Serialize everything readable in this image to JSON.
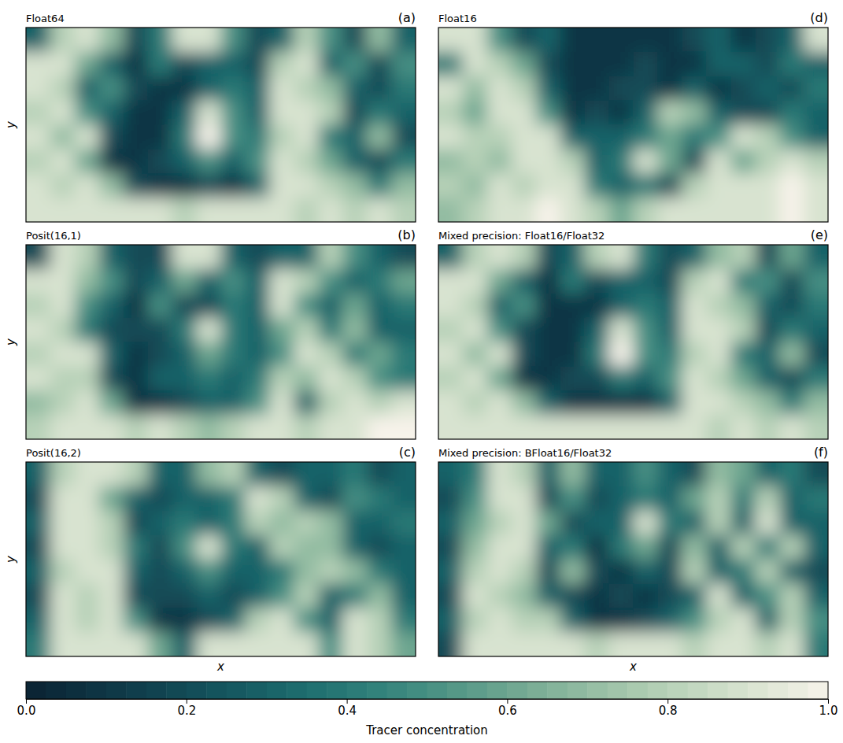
{
  "chart_data": {
    "type": "heatmap",
    "tick_labels": false,
    "x_label": "x",
    "y_label": "y",
    "colorbar": {
      "label": "Tracer concentration",
      "range": [
        0,
        1
      ],
      "ticks": [
        {
          "value": 0,
          "label": "0.0"
        },
        {
          "value": 0.2,
          "label": "0.2"
        },
        {
          "value": 0.4,
          "label": "0.4"
        },
        {
          "value": 0.6,
          "label": "0.6"
        },
        {
          "value": 0.8,
          "label": "0.8"
        },
        {
          "value": 1,
          "label": "1.0"
        }
      ]
    },
    "panels": [
      {
        "title": "Float64",
        "letter": "(a)",
        "cells": [
          [
            0.3,
            0.8,
            0.9,
            0.7,
            0.2,
            0.4,
            0.9,
            0.9,
            0.5,
            0.2,
            0.3,
            0.8,
            0.5,
            0.2,
            0.7,
            0.3
          ],
          [
            0.9,
            0.9,
            0.6,
            0.3,
            0.1,
            0.4,
            0.2,
            0.3,
            0.3,
            0.2,
            0.8,
            0.9,
            0.3,
            0.5,
            0.2,
            0.5
          ],
          [
            0.9,
            0.8,
            0.3,
            0.5,
            0.2,
            0.1,
            0.1,
            0.3,
            0.4,
            0.3,
            0.9,
            0.8,
            0.7,
            0.3,
            0.2,
            0.4
          ],
          [
            0.8,
            0.9,
            0.5,
            0.3,
            0.1,
            0.1,
            0.3,
            0.9,
            0.5,
            0.3,
            0.9,
            0.9,
            0.8,
            0.2,
            0.4,
            0.3
          ],
          [
            0.9,
            0.7,
            0.9,
            0.2,
            0.1,
            0.1,
            0.4,
            1.0,
            0.5,
            0.4,
            0.8,
            0.9,
            0.4,
            0.3,
            0.7,
            0.2
          ],
          [
            0.8,
            0.9,
            0.6,
            0.1,
            0.1,
            0.2,
            0.3,
            0.5,
            0.3,
            0.5,
            0.9,
            0.8,
            0.6,
            0.3,
            0.2,
            0.4
          ],
          [
            0.9,
            0.8,
            0.9,
            0.7,
            0.2,
            0.1,
            0.1,
            0.2,
            0.1,
            0.3,
            0.9,
            0.9,
            0.8,
            0.7,
            0.4,
            0.7
          ],
          [
            0.9,
            0.9,
            0.9,
            0.9,
            0.9,
            0.9,
            0.8,
            0.9,
            0.9,
            0.9,
            0.9,
            0.8,
            0.9,
            0.8,
            0.9,
            0.8
          ]
        ]
      },
      {
        "title": "Posit(16,1)",
        "letter": "(b)",
        "cells": [
          [
            0.2,
            0.9,
            0.8,
            0.3,
            0.2,
            0.2,
            0.9,
            0.9,
            0.3,
            0.2,
            0.3,
            0.3,
            0.8,
            0.5,
            0.3,
            0.2
          ],
          [
            0.9,
            0.9,
            0.7,
            0.5,
            0.2,
            0.3,
            0.6,
            0.3,
            0.5,
            0.3,
            0.9,
            0.8,
            0.5,
            0.3,
            0.4,
            0.6
          ],
          [
            0.8,
            0.9,
            0.5,
            0.3,
            0.1,
            0.5,
            0.2,
            0.2,
            0.4,
            0.3,
            0.9,
            0.5,
            0.3,
            0.6,
            0.3,
            0.4
          ],
          [
            0.9,
            0.8,
            0.4,
            0.2,
            0.2,
            0.2,
            0.4,
            0.9,
            0.4,
            0.3,
            0.6,
            0.8,
            0.4,
            0.7,
            0.3,
            0.3
          ],
          [
            0.8,
            0.9,
            0.9,
            0.3,
            0.1,
            0.2,
            0.3,
            0.6,
            0.4,
            0.3,
            0.5,
            0.9,
            0.8,
            0.4,
            0.6,
            0.4
          ],
          [
            0.9,
            0.8,
            0.8,
            0.2,
            0.1,
            0.3,
            0.3,
            0.4,
            0.3,
            0.4,
            0.8,
            0.7,
            0.9,
            0.8,
            0.5,
            0.4
          ],
          [
            0.7,
            0.8,
            0.9,
            0.6,
            0.1,
            0.1,
            0.2,
            0.3,
            0.3,
            0.5,
            0.9,
            0.3,
            0.8,
            0.9,
            0.8,
            0.9
          ],
          [
            0.8,
            0.9,
            0.9,
            0.9,
            0.8,
            0.9,
            0.8,
            0.7,
            0.8,
            0.9,
            0.9,
            0.8,
            0.9,
            0.9,
            1.0,
            1.0
          ]
        ]
      },
      {
        "title": "Posit(16,2)",
        "letter": "(c)",
        "cells": [
          [
            0.3,
            0.8,
            0.9,
            0.9,
            0.8,
            0.3,
            0.3,
            0.7,
            0.8,
            0.3,
            0.2,
            0.3,
            0.3,
            0.4,
            0.2,
            0.3
          ],
          [
            0.2,
            0.9,
            0.9,
            0.6,
            0.3,
            0.2,
            0.3,
            0.3,
            0.4,
            0.9,
            0.8,
            0.3,
            0.2,
            0.5,
            0.4,
            0.3
          ],
          [
            0.3,
            0.9,
            0.9,
            0.8,
            0.2,
            0.3,
            0.4,
            0.3,
            0.4,
            0.8,
            0.7,
            0.8,
            0.7,
            0.3,
            0.3,
            0.4
          ],
          [
            0.2,
            0.9,
            0.9,
            0.8,
            0.4,
            0.2,
            0.5,
            0.9,
            0.4,
            0.3,
            0.8,
            0.7,
            0.7,
            0.3,
            0.2,
            0.3
          ],
          [
            0.3,
            0.8,
            0.9,
            0.9,
            0.3,
            0.2,
            0.3,
            0.5,
            0.3,
            0.3,
            0.4,
            0.7,
            0.8,
            0.7,
            0.4,
            0.3
          ],
          [
            0.2,
            0.9,
            0.8,
            0.9,
            0.2,
            0.2,
            0.2,
            0.3,
            0.2,
            0.3,
            0.5,
            0.8,
            0.3,
            0.4,
            0.7,
            0.3
          ],
          [
            0.3,
            0.9,
            0.8,
            0.9,
            0.5,
            0.1,
            0.1,
            0.2,
            0.3,
            0.8,
            0.9,
            0.5,
            0.3,
            0.9,
            0.8,
            0.4
          ],
          [
            0.4,
            0.9,
            0.9,
            0.9,
            0.9,
            0.6,
            0.3,
            0.9,
            0.9,
            0.9,
            0.9,
            0.9,
            0.5,
            0.9,
            0.8,
            0.6
          ]
        ]
      },
      {
        "title": "Float16",
        "letter": "(d)",
        "cells": [
          [
            0.9,
            0.9,
            0.5,
            0.2,
            0.3,
            0.1,
            0.1,
            0.1,
            0.1,
            0.1,
            0.2,
            0.3,
            0.1,
            0.2,
            0.3,
            0.9
          ],
          [
            0.4,
            0.9,
            0.8,
            0.6,
            0.2,
            0.1,
            0.1,
            0.1,
            0.2,
            0.1,
            0.1,
            0.3,
            0.3,
            0.2,
            0.4,
            0.3
          ],
          [
            0.9,
            0.7,
            0.9,
            0.8,
            0.3,
            0.1,
            0.1,
            0.2,
            0.2,
            0.1,
            0.3,
            0.1,
            0.2,
            0.3,
            0.2,
            0.4
          ],
          [
            0.8,
            0.6,
            0.9,
            0.9,
            0.5,
            0.1,
            0.2,
            0.1,
            0.3,
            0.8,
            0.7,
            0.3,
            0.2,
            0.2,
            0.4,
            0.3
          ],
          [
            0.9,
            0.8,
            0.8,
            0.9,
            0.9,
            0.3,
            0.3,
            0.3,
            0.4,
            0.6,
            0.4,
            0.5,
            0.9,
            0.8,
            0.5,
            0.3
          ],
          [
            0.7,
            0.8,
            0.7,
            0.9,
            0.9,
            0.8,
            0.3,
            0.4,
            0.9,
            0.6,
            0.2,
            0.9,
            0.6,
            0.8,
            0.9,
            0.8
          ],
          [
            0.8,
            0.7,
            0.9,
            0.8,
            0.9,
            0.9,
            0.4,
            0.3,
            0.4,
            0.2,
            0.8,
            0.9,
            0.9,
            0.9,
            1.0,
            0.9
          ],
          [
            0.7,
            0.8,
            0.9,
            0.9,
            1.0,
            0.9,
            0.8,
            0.6,
            0.8,
            0.9,
            0.9,
            0.9,
            0.9,
            0.9,
            1.0,
            0.9
          ]
        ]
      },
      {
        "title": "Mixed precision: Float16/Float32",
        "letter": "(e)",
        "cells": [
          [
            0.3,
            0.8,
            0.9,
            0.8,
            0.2,
            0.3,
            0.8,
            0.9,
            0.4,
            0.2,
            0.3,
            0.7,
            0.8,
            0.2,
            0.6,
            0.3
          ],
          [
            0.9,
            0.9,
            0.6,
            0.3,
            0.1,
            0.4,
            0.2,
            0.3,
            0.3,
            0.2,
            0.8,
            0.9,
            0.4,
            0.5,
            0.2,
            0.5
          ],
          [
            0.9,
            0.8,
            0.3,
            0.5,
            0.1,
            0.1,
            0.1,
            0.3,
            0.4,
            0.3,
            0.9,
            0.8,
            0.7,
            0.3,
            0.2,
            0.4
          ],
          [
            0.8,
            0.9,
            0.5,
            0.2,
            0.1,
            0.1,
            0.3,
            0.9,
            0.5,
            0.3,
            0.9,
            0.9,
            0.8,
            0.2,
            0.4,
            0.3
          ],
          [
            0.9,
            0.7,
            0.9,
            0.2,
            0.1,
            0.1,
            0.4,
            1.0,
            0.5,
            0.4,
            0.8,
            0.9,
            0.4,
            0.3,
            0.7,
            0.2
          ],
          [
            0.8,
            0.9,
            0.6,
            0.1,
            0.1,
            0.2,
            0.2,
            0.4,
            0.3,
            0.5,
            0.9,
            0.8,
            0.6,
            0.3,
            0.2,
            0.4
          ],
          [
            0.9,
            0.8,
            0.9,
            0.7,
            0.3,
            0.1,
            0.1,
            0.1,
            0.1,
            0.3,
            0.9,
            0.9,
            0.8,
            0.7,
            0.4,
            0.7
          ],
          [
            0.9,
            0.9,
            0.9,
            0.9,
            0.9,
            0.9,
            0.9,
            0.9,
            0.9,
            0.9,
            0.9,
            0.8,
            0.9,
            0.8,
            0.9,
            0.8
          ]
        ]
      },
      {
        "title": "Mixed precision: BFloat16/Float32",
        "letter": "(f)",
        "cells": [
          [
            0.3,
            0.4,
            0.9,
            0.8,
            0.3,
            0.7,
            0.3,
            0.3,
            0.5,
            0.3,
            0.2,
            0.7,
            0.6,
            0.3,
            0.4,
            0.2
          ],
          [
            0.2,
            0.5,
            0.9,
            0.9,
            0.2,
            0.5,
            0.2,
            0.3,
            0.4,
            0.3,
            0.6,
            0.8,
            0.4,
            0.8,
            0.3,
            0.4
          ],
          [
            0.3,
            0.6,
            0.8,
            0.9,
            0.6,
            0.2,
            0.3,
            0.3,
            0.9,
            0.4,
            0.3,
            0.8,
            0.3,
            0.9,
            0.3,
            0.3
          ],
          [
            0.2,
            0.7,
            0.9,
            0.9,
            0.3,
            0.4,
            0.1,
            0.4,
            0.6,
            0.2,
            0.7,
            0.3,
            0.8,
            0.4,
            0.8,
            0.3
          ],
          [
            0.3,
            0.8,
            0.9,
            0.8,
            0.2,
            0.7,
            0.2,
            0.1,
            0.3,
            0.2,
            0.8,
            0.3,
            0.4,
            0.8,
            0.3,
            0.2
          ],
          [
            0.2,
            0.9,
            0.8,
            0.7,
            0.3,
            0.2,
            0.1,
            0.2,
            0.1,
            0.2,
            0.3,
            0.9,
            0.3,
            0.5,
            0.8,
            0.3
          ],
          [
            0.3,
            0.8,
            0.9,
            0.8,
            0.8,
            0.3,
            0.1,
            0.1,
            0.2,
            0.3,
            0.5,
            0.8,
            0.9,
            0.3,
            0.8,
            0.5
          ],
          [
            0.2,
            0.9,
            0.9,
            0.9,
            0.9,
            0.9,
            0.8,
            0.9,
            0.9,
            0.9,
            0.8,
            0.9,
            0.9,
            0.8,
            0.9,
            0.4
          ]
        ]
      }
    ]
  }
}
